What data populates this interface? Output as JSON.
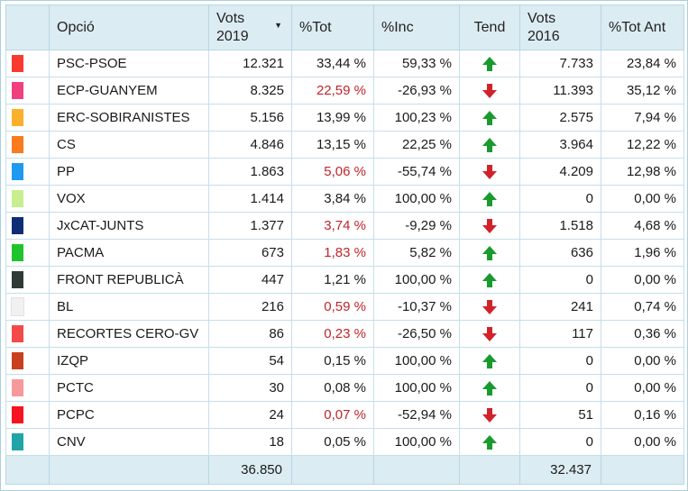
{
  "headers": {
    "opcio": "Opció",
    "vots2019_line1": "Vots",
    "vots2019_line2": "2019",
    "sort_indicator": "▼",
    "pct_tot": "%Tot",
    "pct_inc": "%Inc",
    "tend": "Tend",
    "vots2016_line1": "Vots",
    "vots2016_line2": "2016",
    "pct_tot_ant": "%Tot Ant"
  },
  "colors": {
    "up_arrow": "#1a9a2e",
    "down_arrow": "#d1222a",
    "negative_pct": "#c0252b",
    "header_bg": "#dcecf3"
  },
  "rows": [
    {
      "color": "#fa3a2e",
      "name": "PSC-PSOE",
      "vots2019": "12.321",
      "pct_tot": "33,44 %",
      "pct_tot_red": false,
      "pct_inc": "59,33 %",
      "tend": "up",
      "vots2016": "7.733",
      "pct_tot_ant": "23,84 %"
    },
    {
      "color": "#f0417e",
      "name": "ECP-GUANYEM",
      "vots2019": "8.325",
      "pct_tot": "22,59 %",
      "pct_tot_red": true,
      "pct_inc": "-26,93 %",
      "tend": "down",
      "vots2016": "11.393",
      "pct_tot_ant": "35,12 %"
    },
    {
      "color": "#fbb02b",
      "name": "ERC-SOBIRANISTES",
      "vots2019": "5.156",
      "pct_tot": "13,99 %",
      "pct_tot_red": false,
      "pct_inc": "100,23 %",
      "tend": "up",
      "vots2016": "2.575",
      "pct_tot_ant": "7,94 %"
    },
    {
      "color": "#fa7a1e",
      "name": "CS",
      "vots2019": "4.846",
      "pct_tot": "13,15 %",
      "pct_tot_red": false,
      "pct_inc": "22,25 %",
      "tend": "up",
      "vots2016": "3.964",
      "pct_tot_ant": "12,22 %"
    },
    {
      "color": "#1e9af0",
      "name": "PP",
      "vots2019": "1.863",
      "pct_tot": "5,06 %",
      "pct_tot_red": true,
      "pct_inc": "-55,74 %",
      "tend": "down",
      "vots2016": "4.209",
      "pct_tot_ant": "12,98 %"
    },
    {
      "color": "#c7ef8f",
      "name": "VOX",
      "vots2019": "1.414",
      "pct_tot": "3,84 %",
      "pct_tot_red": false,
      "pct_inc": "100,00 %",
      "tend": "up",
      "vots2016": "0",
      "pct_tot_ant": "0,00 %"
    },
    {
      "color": "#0f2d75",
      "name": "JxCAT-JUNTS",
      "vots2019": "1.377",
      "pct_tot": "3,74 %",
      "pct_tot_red": true,
      "pct_inc": "-9,29 %",
      "tend": "down",
      "vots2016": "1.518",
      "pct_tot_ant": "4,68 %"
    },
    {
      "color": "#1fc42c",
      "name": "PACMA",
      "vots2019": "673",
      "pct_tot": "1,83 %",
      "pct_tot_red": true,
      "pct_inc": "5,82 %",
      "tend": "up",
      "vots2016": "636",
      "pct_tot_ant": "1,96 %"
    },
    {
      "color": "#2f3a36",
      "name": "FRONT REPUBLICÀ",
      "vots2019": "447",
      "pct_tot": "1,21 %",
      "pct_tot_red": false,
      "pct_inc": "100,00 %",
      "tend": "up",
      "vots2016": "0",
      "pct_tot_ant": "0,00 %"
    },
    {
      "color": "#f1f1f1",
      "name": "BL",
      "vots2019": "216",
      "pct_tot": "0,59 %",
      "pct_tot_red": true,
      "pct_inc": "-10,37 %",
      "tend": "down",
      "vots2016": "241",
      "pct_tot_ant": "0,74 %"
    },
    {
      "color": "#f44a4a",
      "name": "RECORTES CERO-GV",
      "vots2019": "86",
      "pct_tot": "0,23 %",
      "pct_tot_red": true,
      "pct_inc": "-26,50 %",
      "tend": "down",
      "vots2016": "117",
      "pct_tot_ant": "0,36 %"
    },
    {
      "color": "#c8401e",
      "name": "IZQP",
      "vots2019": "54",
      "pct_tot": "0,15 %",
      "pct_tot_red": false,
      "pct_inc": "100,00 %",
      "tend": "up",
      "vots2016": "0",
      "pct_tot_ant": "0,00 %"
    },
    {
      "color": "#f7999a",
      "name": "PCTC",
      "vots2019": "30",
      "pct_tot": "0,08 %",
      "pct_tot_red": false,
      "pct_inc": "100,00 %",
      "tend": "up",
      "vots2016": "0",
      "pct_tot_ant": "0,00 %"
    },
    {
      "color": "#f5141f",
      "name": "PCPC",
      "vots2019": "24",
      "pct_tot": "0,07 %",
      "pct_tot_red": true,
      "pct_inc": "-52,94 %",
      "tend": "down",
      "vots2016": "51",
      "pct_tot_ant": "0,16 %"
    },
    {
      "color": "#21a4a8",
      "name": "CNV",
      "vots2019": "18",
      "pct_tot": "0,05 %",
      "pct_tot_red": false,
      "pct_inc": "100,00 %",
      "tend": "up",
      "vots2016": "0",
      "pct_tot_ant": "0,00 %"
    }
  ],
  "totals": {
    "vots2019": "36.850",
    "vots2016": "32.437"
  }
}
